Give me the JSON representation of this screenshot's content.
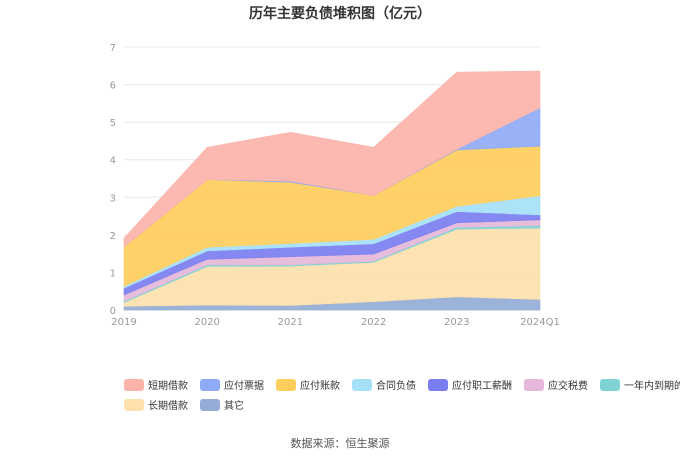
{
  "chart_data": {
    "type": "area",
    "stacked": true,
    "title": "历年主要负债堆积图（亿元）",
    "xlabel": "",
    "ylabel": "",
    "x": [
      "2019",
      "2020",
      "2021",
      "2022",
      "2023",
      "2024Q1"
    ],
    "yticks": [
      "0",
      "1",
      "2",
      "3",
      "4",
      "5",
      "6",
      "7"
    ],
    "ylim": [
      0,
      7
    ],
    "grid": true,
    "legend_position": "bottom",
    "series": [
      {
        "name": "其它",
        "color": "#94acd6",
        "values": [
          0.1,
          0.13,
          0.12,
          0.22,
          0.35,
          0.28
        ]
      },
      {
        "name": "长期借款",
        "color": "#fde0ac",
        "values": [
          0.1,
          1.03,
          1.05,
          1.05,
          1.8,
          1.9
        ]
      },
      {
        "name": "一年内到期的非流动负债",
        "color": "#7fd3d3",
        "values": [
          0.03,
          0.04,
          0.03,
          0.03,
          0.05,
          0.07
        ]
      },
      {
        "name": "应交税费",
        "color": "#e5b7d9",
        "values": [
          0.17,
          0.15,
          0.22,
          0.19,
          0.12,
          0.15
        ]
      },
      {
        "name": "应付职工薪酬",
        "color": "#7b7ef0",
        "values": [
          0.18,
          0.22,
          0.25,
          0.27,
          0.3,
          0.13
        ]
      },
      {
        "name": "合同负债",
        "color": "#a6e1f9",
        "values": [
          0.05,
          0.1,
          0.1,
          0.12,
          0.14,
          0.51
        ]
      },
      {
        "name": "应付账款",
        "color": "#ffcd5c",
        "values": [
          1.05,
          1.8,
          1.63,
          1.17,
          1.5,
          1.32
        ]
      },
      {
        "name": "应付票据",
        "color": "#8faaf6",
        "values": [
          0.0,
          0.0,
          0.03,
          0.0,
          0.02,
          1.02
        ]
      },
      {
        "name": "短期借款",
        "color": "#fbb3aa",
        "values": [
          0.23,
          0.86,
          1.3,
          1.28,
          2.05,
          0.98
        ]
      }
    ]
  },
  "legend_order": [
    "短期借款",
    "应付票据",
    "应付账款",
    "合同负债",
    "应付职工薪酬",
    "应交税费",
    "一年内到期的非流动负债",
    "长期借款",
    "其它"
  ],
  "source_text": "数据来源：恒生聚源"
}
